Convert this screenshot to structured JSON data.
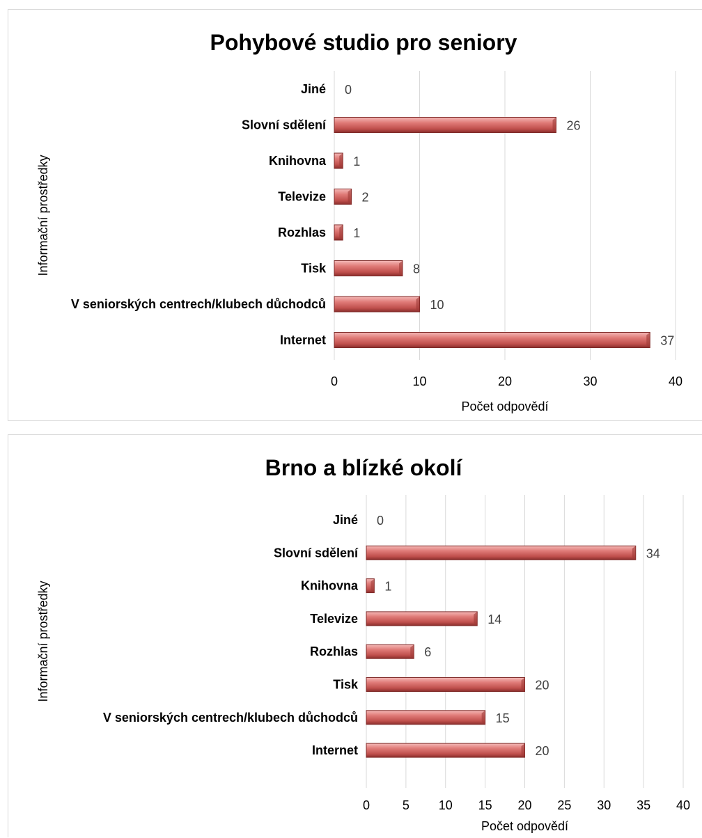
{
  "chart_data": [
    {
      "type": "bar",
      "orientation": "horizontal",
      "title": "Pohybové studio pro seniory",
      "xlabel": "Počet  odpovědí",
      "ylabel": "Informační prostředky",
      "categories": [
        "Jiné",
        "Slovní sdělení",
        "Knihovna",
        "Televize",
        "Rozhlas",
        "Tisk",
        "V seniorských centrech/klubech důchodců",
        "Internet"
      ],
      "values": [
        0,
        26,
        1,
        2,
        1,
        8,
        10,
        37
      ],
      "xlim": [
        0,
        40
      ],
      "xticks": [
        "0",
        "10",
        "20",
        "30",
        "40"
      ],
      "grid": true,
      "bar_color": "#c0504d"
    },
    {
      "type": "bar",
      "orientation": "horizontal",
      "title": "Brno a blízké okolí",
      "xlabel": "Počet odpovědí",
      "ylabel": "Informační prostředky",
      "categories": [
        "Jiné",
        "Slovní sdělení",
        "Knihovna",
        "Televize",
        "Rozhlas",
        "Tisk",
        "V seniorských centrech/klubech důchodců",
        "Internet"
      ],
      "values": [
        0,
        34,
        1,
        14,
        6,
        20,
        15,
        20
      ],
      "xlim": [
        0,
        40
      ],
      "xticks": [
        "0",
        "5",
        "10",
        "15",
        "20",
        "25",
        "30",
        "35",
        "40"
      ],
      "grid": true,
      "bar_color": "#c0504d"
    }
  ]
}
